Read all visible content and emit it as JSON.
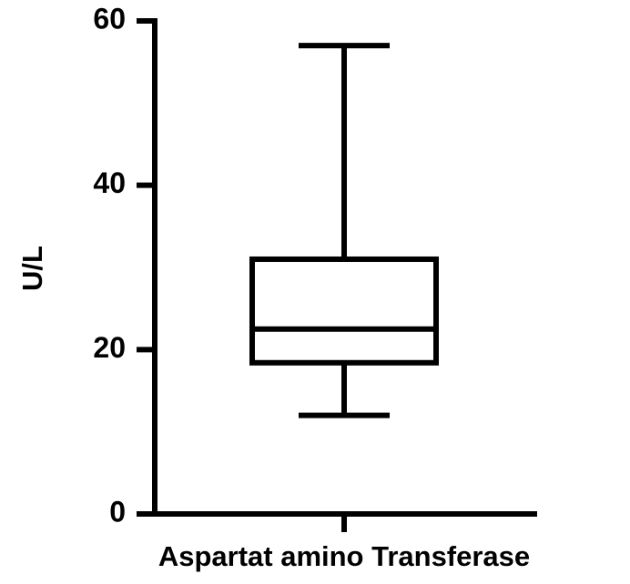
{
  "chart_data": {
    "type": "box",
    "categories": [
      "Aspartat amino Transferase"
    ],
    "ylabel": "U/L",
    "boxes": [
      {
        "min": 12,
        "q1": 18.4,
        "median": 22.5,
        "q3": 31,
        "max": 57
      }
    ],
    "ylim": [
      0,
      60
    ],
    "yticks": [
      0,
      20,
      40,
      60
    ],
    "grid": false,
    "color": "#000000"
  }
}
